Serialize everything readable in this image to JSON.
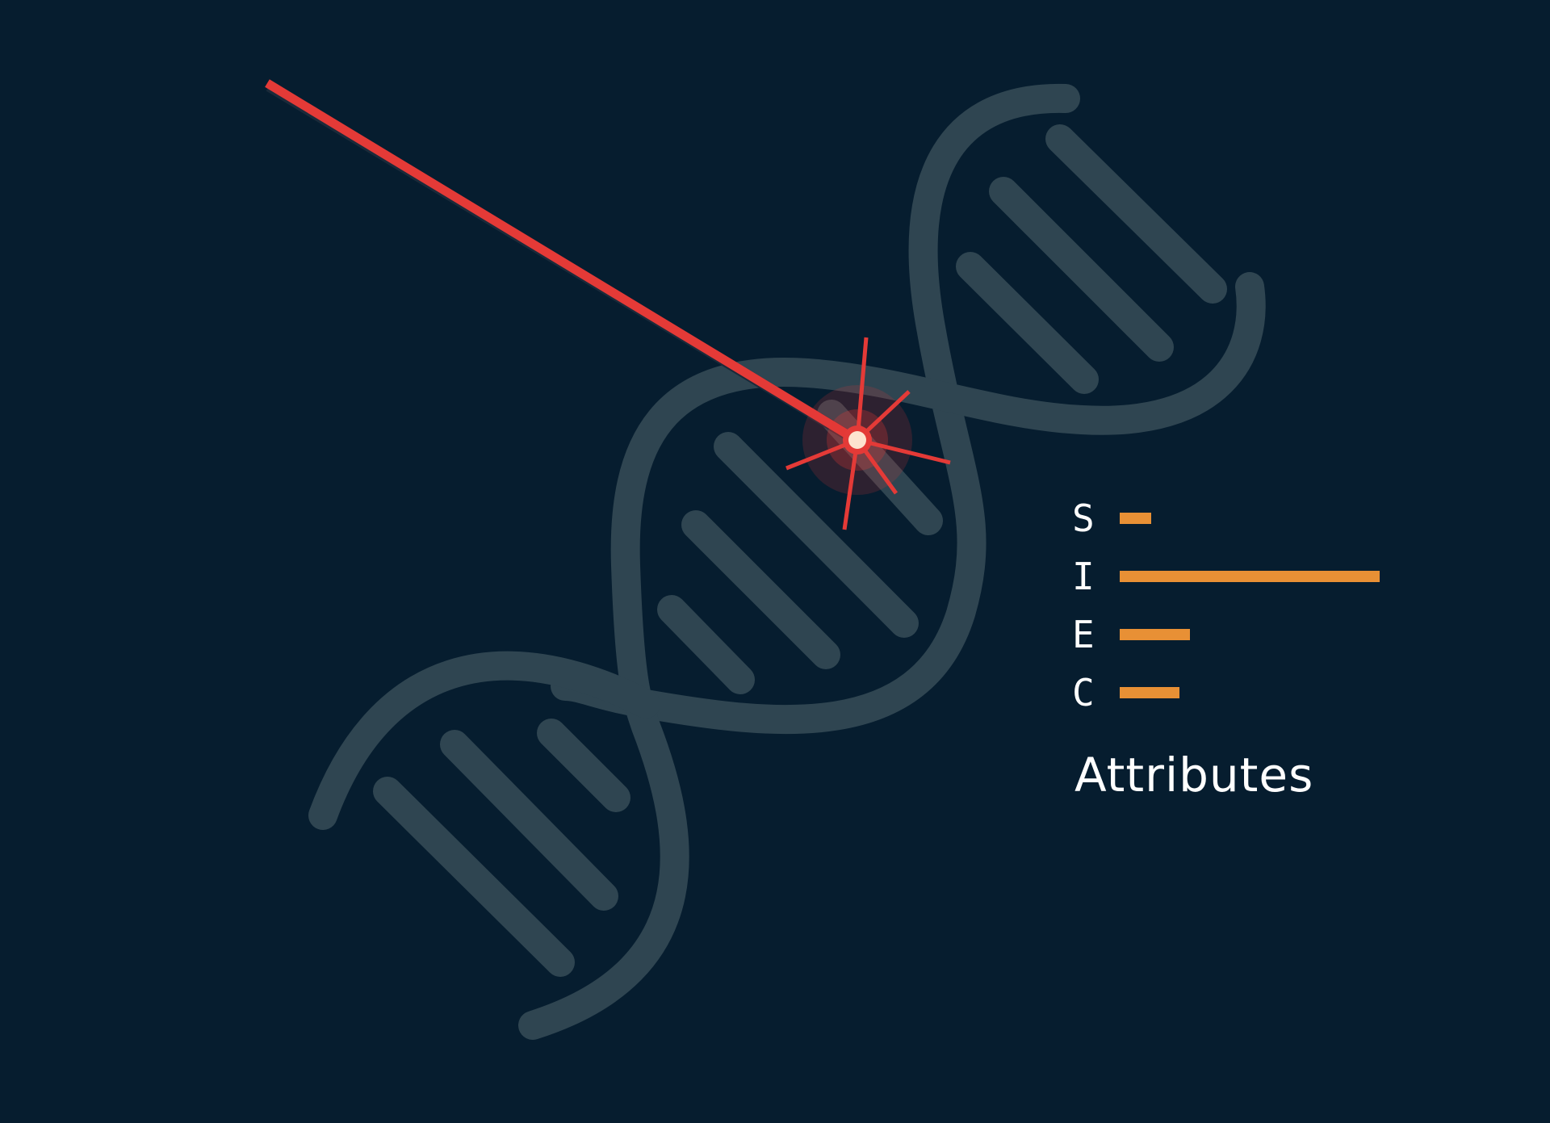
{
  "colors": {
    "background": "#061d2f",
    "helix": "#2f4551",
    "laser": "#e43a37",
    "bar": "#e89035",
    "text": "#ffffff"
  },
  "illustration": {
    "helix_icon": "dna-helix-icon",
    "laser_icon": "laser-beam-icon",
    "impact_icon": "impact-burst-icon"
  },
  "attributes": {
    "title": "Attributes",
    "items": [
      {
        "letter": "S",
        "level": 0.12
      },
      {
        "letter": "I",
        "level": 1.0
      },
      {
        "letter": "E",
        "level": 0.27
      },
      {
        "letter": "C",
        "level": 0.23
      }
    ]
  }
}
